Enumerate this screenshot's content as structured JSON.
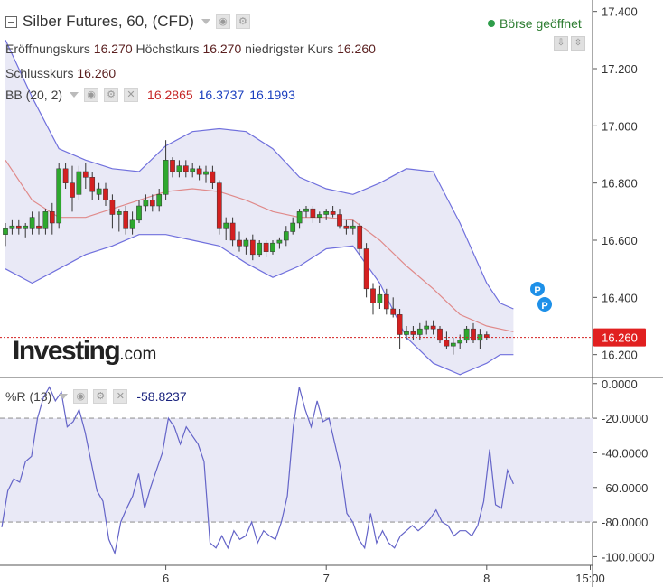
{
  "header": {
    "title": "Silber Futures, 60, (CFD)",
    "ohlc": {
      "open_label": "Eröffnungskurs",
      "open_value": "16.270",
      "high_label": "Höchstkurs",
      "high_value": "16.270",
      "low_label": "niedrigster Kurs",
      "low_value": "16.260",
      "close_label": "Schlusskurs",
      "close_value": "16.260"
    },
    "market_status": "Börse geöffnet"
  },
  "bb": {
    "label": "BB (20, 2)",
    "middle": "16.2865",
    "upper": "16.3737",
    "lower": "16.1993"
  },
  "williams": {
    "label": "%R (13)",
    "value": "-58.8237"
  },
  "logo": {
    "main": "Investing",
    "suffix": ".com"
  },
  "price_axis": {
    "ticks": [
      "17.400",
      "17.200",
      "17.000",
      "16.800",
      "16.600",
      "16.400",
      "16.200"
    ],
    "current": "16.260"
  },
  "wr_axis": {
    "ticks": [
      "0.0000",
      "-20.0000",
      "-40.0000",
      "-60.0000",
      "-80.0000",
      "-100.0000"
    ]
  },
  "time_axis": {
    "ticks": [
      {
        "label": "6",
        "index": 24
      },
      {
        "label": "7",
        "index": 48
      },
      {
        "label": "8",
        "index": 72
      },
      {
        "label": "15:00",
        "index": 87.5
      }
    ]
  },
  "colors": {
    "up": "#2ea82e",
    "down": "#d42020",
    "band_fill": "#e9e9f6",
    "band_line": "#7070dd",
    "mid_line": "#e08a8a",
    "price_line": "#d42020",
    "wr_line": "#6464c8"
  },
  "chart_data": {
    "type": "candlestick",
    "price_range": [
      16.12,
      17.44
    ],
    "candles": [
      {
        "o": 16.62,
        "h": 16.66,
        "l": 16.58,
        "c": 16.64
      },
      {
        "o": 16.64,
        "h": 16.67,
        "l": 16.62,
        "c": 16.65
      },
      {
        "o": 16.65,
        "h": 16.67,
        "l": 16.62,
        "c": 16.64
      },
      {
        "o": 16.64,
        "h": 16.66,
        "l": 16.61,
        "c": 16.65
      },
      {
        "o": 16.64,
        "h": 16.7,
        "l": 16.62,
        "c": 16.68
      },
      {
        "o": 16.65,
        "h": 16.7,
        "l": 16.62,
        "c": 16.64
      },
      {
        "o": 16.64,
        "h": 16.71,
        "l": 16.62,
        "c": 16.7
      },
      {
        "o": 16.7,
        "h": 16.73,
        "l": 16.62,
        "c": 16.66
      },
      {
        "o": 16.66,
        "h": 16.87,
        "l": 16.64,
        "c": 16.85
      },
      {
        "o": 16.85,
        "h": 16.87,
        "l": 16.78,
        "c": 16.8
      },
      {
        "o": 16.8,
        "h": 16.86,
        "l": 16.7,
        "c": 16.75
      },
      {
        "o": 16.76,
        "h": 16.86,
        "l": 16.74,
        "c": 16.84
      },
      {
        "o": 16.84,
        "h": 16.87,
        "l": 16.78,
        "c": 16.82
      },
      {
        "o": 16.82,
        "h": 16.84,
        "l": 16.74,
        "c": 16.77
      },
      {
        "o": 16.76,
        "h": 16.8,
        "l": 16.74,
        "c": 16.78
      },
      {
        "o": 16.78,
        "h": 16.8,
        "l": 16.72,
        "c": 16.74
      },
      {
        "o": 16.74,
        "h": 16.76,
        "l": 16.64,
        "c": 16.69
      },
      {
        "o": 16.69,
        "h": 16.71,
        "l": 16.63,
        "c": 16.7
      },
      {
        "o": 16.7,
        "h": 16.72,
        "l": 16.62,
        "c": 16.64
      },
      {
        "o": 16.64,
        "h": 16.7,
        "l": 16.62,
        "c": 16.67
      },
      {
        "o": 16.67,
        "h": 16.74,
        "l": 16.66,
        "c": 16.72
      },
      {
        "o": 16.72,
        "h": 16.76,
        "l": 16.7,
        "c": 16.74
      },
      {
        "o": 16.74,
        "h": 16.76,
        "l": 16.7,
        "c": 16.72
      },
      {
        "o": 16.72,
        "h": 16.78,
        "l": 16.7,
        "c": 16.76
      },
      {
        "o": 16.76,
        "h": 16.95,
        "l": 16.74,
        "c": 16.88
      },
      {
        "o": 16.88,
        "h": 16.89,
        "l": 16.82,
        "c": 16.84
      },
      {
        "o": 16.84,
        "h": 16.88,
        "l": 16.82,
        "c": 16.86
      },
      {
        "o": 16.86,
        "h": 16.88,
        "l": 16.82,
        "c": 16.84
      },
      {
        "o": 16.84,
        "h": 16.87,
        "l": 16.82,
        "c": 16.85
      },
      {
        "o": 16.85,
        "h": 16.86,
        "l": 16.81,
        "c": 16.83
      },
      {
        "o": 16.83,
        "h": 16.86,
        "l": 16.8,
        "c": 16.84
      },
      {
        "o": 16.84,
        "h": 16.86,
        "l": 16.78,
        "c": 16.8
      },
      {
        "o": 16.8,
        "h": 16.81,
        "l": 16.62,
        "c": 16.64
      },
      {
        "o": 16.64,
        "h": 16.68,
        "l": 16.6,
        "c": 16.66
      },
      {
        "o": 16.66,
        "h": 16.68,
        "l": 16.58,
        "c": 16.6
      },
      {
        "o": 16.6,
        "h": 16.63,
        "l": 16.56,
        "c": 16.58
      },
      {
        "o": 16.58,
        "h": 16.61,
        "l": 16.55,
        "c": 16.6
      },
      {
        "o": 16.6,
        "h": 16.62,
        "l": 16.53,
        "c": 16.55
      },
      {
        "o": 16.55,
        "h": 16.6,
        "l": 16.54,
        "c": 16.59
      },
      {
        "o": 16.59,
        "h": 16.6,
        "l": 16.54,
        "c": 16.56
      },
      {
        "o": 16.56,
        "h": 16.6,
        "l": 16.55,
        "c": 16.59
      },
      {
        "o": 16.59,
        "h": 16.61,
        "l": 16.57,
        "c": 16.6
      },
      {
        "o": 16.6,
        "h": 16.65,
        "l": 16.58,
        "c": 16.63
      },
      {
        "o": 16.63,
        "h": 16.68,
        "l": 16.62,
        "c": 16.66
      },
      {
        "o": 16.66,
        "h": 16.71,
        "l": 16.64,
        "c": 16.7
      },
      {
        "o": 16.7,
        "h": 16.72,
        "l": 16.68,
        "c": 16.71
      },
      {
        "o": 16.71,
        "h": 16.72,
        "l": 16.66,
        "c": 16.68
      },
      {
        "o": 16.68,
        "h": 16.7,
        "l": 16.66,
        "c": 16.69
      },
      {
        "o": 16.69,
        "h": 16.71,
        "l": 16.67,
        "c": 16.7
      },
      {
        "o": 16.7,
        "h": 16.72,
        "l": 16.68,
        "c": 16.69
      },
      {
        "o": 16.69,
        "h": 16.71,
        "l": 16.64,
        "c": 16.65
      },
      {
        "o": 16.65,
        "h": 16.67,
        "l": 16.62,
        "c": 16.64
      },
      {
        "o": 16.64,
        "h": 16.67,
        "l": 16.62,
        "c": 16.65
      },
      {
        "o": 16.65,
        "h": 16.66,
        "l": 16.55,
        "c": 16.57
      },
      {
        "o": 16.57,
        "h": 16.59,
        "l": 16.4,
        "c": 16.43
      },
      {
        "o": 16.43,
        "h": 16.45,
        "l": 16.34,
        "c": 16.38
      },
      {
        "o": 16.38,
        "h": 16.44,
        "l": 16.36,
        "c": 16.41
      },
      {
        "o": 16.41,
        "h": 16.43,
        "l": 16.34,
        "c": 16.36
      },
      {
        "o": 16.36,
        "h": 16.4,
        "l": 16.33,
        "c": 16.34
      },
      {
        "o": 16.34,
        "h": 16.36,
        "l": 16.22,
        "c": 16.27
      },
      {
        "o": 16.27,
        "h": 16.3,
        "l": 16.25,
        "c": 16.28
      },
      {
        "o": 16.28,
        "h": 16.3,
        "l": 16.25,
        "c": 16.27
      },
      {
        "o": 16.27,
        "h": 16.31,
        "l": 16.25,
        "c": 16.29
      },
      {
        "o": 16.29,
        "h": 16.32,
        "l": 16.27,
        "c": 16.3
      },
      {
        "o": 16.3,
        "h": 16.32,
        "l": 16.27,
        "c": 16.29
      },
      {
        "o": 16.29,
        "h": 16.3,
        "l": 16.24,
        "c": 16.25
      },
      {
        "o": 16.25,
        "h": 16.28,
        "l": 16.22,
        "c": 16.23
      },
      {
        "o": 16.23,
        "h": 16.26,
        "l": 16.2,
        "c": 16.24
      },
      {
        "o": 16.24,
        "h": 16.27,
        "l": 16.22,
        "c": 16.25
      },
      {
        "o": 16.25,
        "h": 16.3,
        "l": 16.24,
        "c": 16.29
      },
      {
        "o": 16.29,
        "h": 16.31,
        "l": 16.24,
        "c": 16.25
      },
      {
        "o": 16.25,
        "h": 16.29,
        "l": 16.22,
        "c": 16.27
      },
      {
        "o": 16.27,
        "h": 16.28,
        "l": 16.25,
        "c": 16.26
      }
    ],
    "bb_upper": [
      [
        0,
        17.3
      ],
      [
        4,
        17.1
      ],
      [
        8,
        16.92
      ],
      [
        12,
        16.88
      ],
      [
        16,
        16.85
      ],
      [
        20,
        16.84
      ],
      [
        24,
        16.93
      ],
      [
        28,
        16.98
      ],
      [
        32,
        16.99
      ],
      [
        36,
        16.98
      ],
      [
        40,
        16.92
      ],
      [
        44,
        16.82
      ],
      [
        48,
        16.78
      ],
      [
        52,
        16.76
      ],
      [
        56,
        16.8
      ],
      [
        60,
        16.85
      ],
      [
        64,
        16.84
      ],
      [
        68,
        16.66
      ],
      [
        72,
        16.45
      ],
      [
        74,
        16.38
      ],
      [
        76,
        16.36
      ]
    ],
    "bb_mid": [
      [
        0,
        16.88
      ],
      [
        4,
        16.74
      ],
      [
        8,
        16.68
      ],
      [
        12,
        16.68
      ],
      [
        16,
        16.71
      ],
      [
        20,
        16.74
      ],
      [
        24,
        16.77
      ],
      [
        28,
        16.78
      ],
      [
        32,
        16.77
      ],
      [
        36,
        16.74
      ],
      [
        40,
        16.7
      ],
      [
        44,
        16.68
      ],
      [
        48,
        16.68
      ],
      [
        52,
        16.67
      ],
      [
        56,
        16.6
      ],
      [
        60,
        16.51
      ],
      [
        64,
        16.43
      ],
      [
        68,
        16.34
      ],
      [
        72,
        16.3
      ],
      [
        74,
        16.29
      ],
      [
        76,
        16.28
      ]
    ],
    "bb_lower": [
      [
        0,
        16.5
      ],
      [
        4,
        16.45
      ],
      [
        8,
        16.5
      ],
      [
        12,
        16.55
      ],
      [
        16,
        16.58
      ],
      [
        20,
        16.62
      ],
      [
        24,
        16.62
      ],
      [
        28,
        16.6
      ],
      [
        32,
        16.58
      ],
      [
        36,
        16.52
      ],
      [
        40,
        16.47
      ],
      [
        44,
        16.51
      ],
      [
        48,
        16.57
      ],
      [
        52,
        16.58
      ],
      [
        56,
        16.45
      ],
      [
        60,
        16.26
      ],
      [
        64,
        16.17
      ],
      [
        68,
        16.13
      ],
      [
        70,
        16.15
      ],
      [
        72,
        16.17
      ],
      [
        74,
        16.2
      ],
      [
        76,
        16.2
      ]
    ],
    "wr_range": [
      -105,
      3
    ],
    "wr_levels": [
      -20,
      -80
    ],
    "williams_r": [
      -83,
      -62,
      -55,
      -57,
      -45,
      -42,
      -20,
      -8,
      -2,
      -10,
      -5,
      -25,
      -22,
      -15,
      -28,
      -45,
      -62,
      -68,
      -90,
      -98,
      -80,
      -72,
      -65,
      -52,
      -72,
      -60,
      -50,
      -40,
      -20,
      -25,
      -35,
      -25,
      -30,
      -35,
      -45,
      -92,
      -95,
      -88,
      -95,
      -85,
      -90,
      -88,
      -80,
      -92,
      -85,
      -88,
      -90,
      -80,
      -65,
      -25,
      -2,
      -15,
      -25,
      -10,
      -22,
      -20,
      -35,
      -50,
      -75,
      -80,
      -90,
      -95,
      -75,
      -92,
      -85,
      -92,
      -95,
      -88,
      -85,
      -82,
      -85,
      -82,
      -78,
      -73,
      -80,
      -82,
      -88,
      -85,
      -85,
      -88,
      -82,
      -68,
      -38,
      -70,
      -72,
      -50,
      -58
    ]
  }
}
